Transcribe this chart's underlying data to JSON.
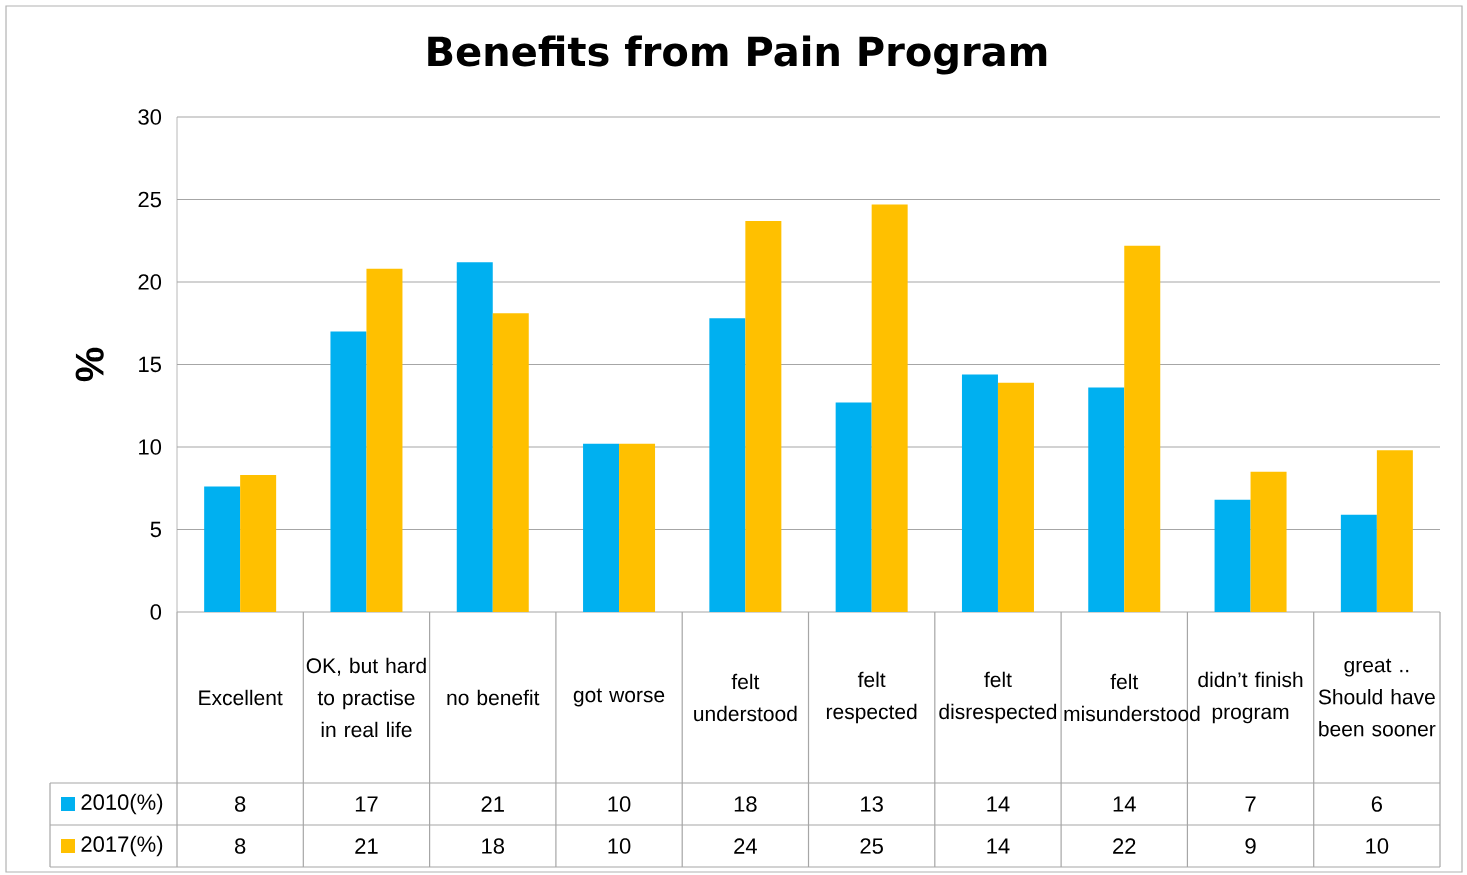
{
  "chart_data": {
    "type": "bar",
    "title": "Benefits from Pain Program",
    "ylabel": "%",
    "categories": [
      "Excellent",
      "OK, but hard to practise in real life",
      "no benefit",
      "got worse",
      "felt understood",
      "felt respected",
      "felt disrespected",
      "felt misunderstood",
      "didn’t finish program",
      "great .. Should have been sooner"
    ],
    "series": [
      {
        "name": "2010(%)",
        "color": "#00b0f0",
        "values": [
          7.6,
          17.0,
          21.2,
          10.2,
          17.8,
          12.7,
          14.4,
          13.6,
          6.8,
          5.9
        ],
        "value_labels": [
          "8",
          "17",
          "21",
          "10",
          "18",
          "13",
          "14",
          "14",
          "7",
          "6"
        ]
      },
      {
        "name": "2017(%)",
        "color": "#ffc000",
        "values": [
          8.3,
          20.8,
          18.1,
          10.2,
          23.7,
          24.7,
          13.9,
          22.2,
          8.5,
          9.8
        ],
        "value_labels": [
          "8",
          "21",
          "18",
          "10",
          "24",
          "25",
          "14",
          "22",
          "9",
          "10"
        ]
      }
    ],
    "ylim": [
      0,
      30
    ],
    "yticks": [
      0,
      5,
      10,
      15,
      20,
      25,
      30
    ],
    "grid": "y",
    "legend": "bottom left"
  }
}
